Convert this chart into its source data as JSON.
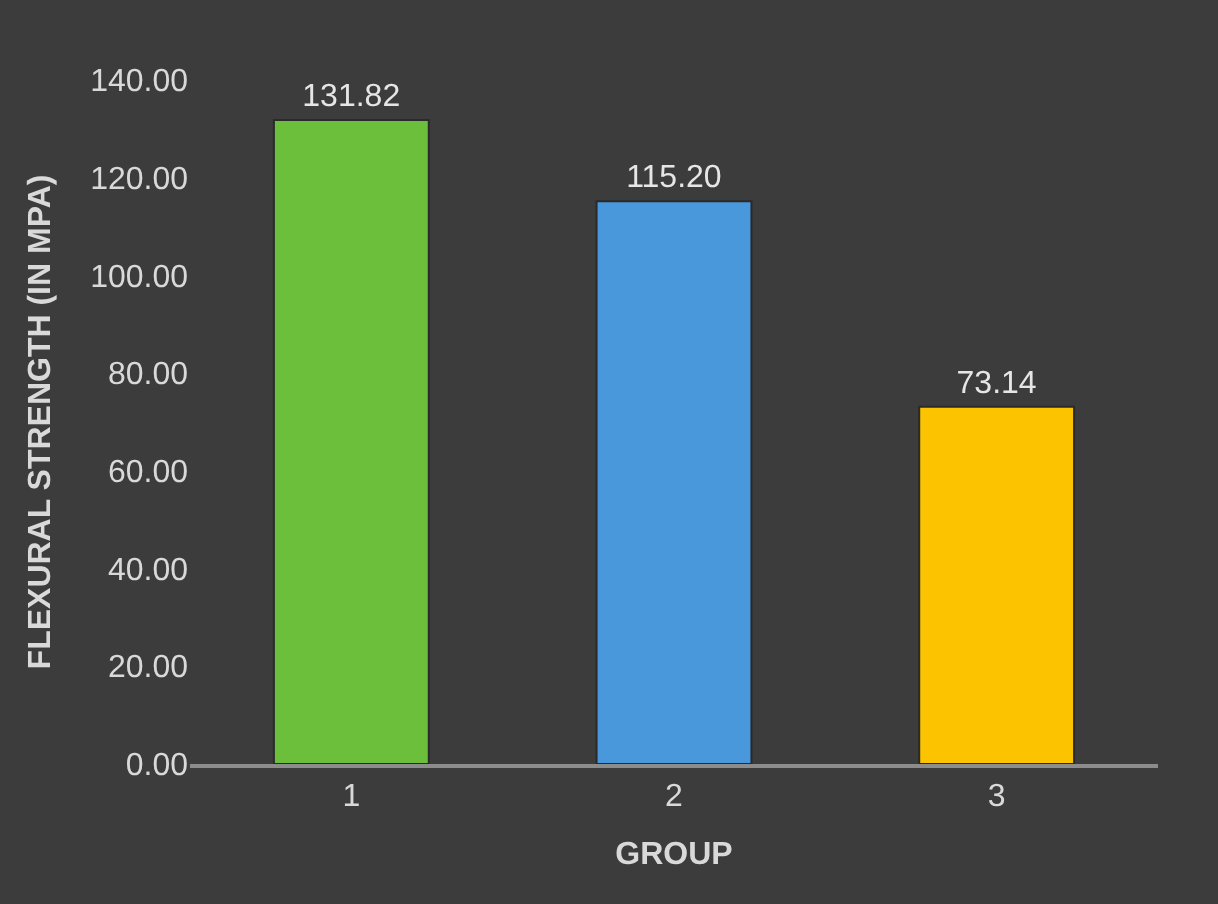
{
  "chart_data": {
    "type": "bar",
    "xlabel": "GROUP",
    "ylabel": "FLEXURAL STRENGTH (IN MPA)",
    "categories": [
      "1",
      "2",
      "3"
    ],
    "values": [
      131.82,
      115.2,
      73.14
    ],
    "colors": [
      "#6cbf3a",
      "#4a98dc",
      "#fcc400"
    ],
    "value_labels": [
      "131.82",
      "115.20",
      "73.14"
    ],
    "ylim": [
      0,
      140
    ],
    "yticks": [
      {
        "value": 0,
        "label": "0.00"
      },
      {
        "value": 20,
        "label": "20.00"
      },
      {
        "value": 40,
        "label": "40.00"
      },
      {
        "value": 60,
        "label": "60.00"
      },
      {
        "value": 80,
        "label": "80.00"
      },
      {
        "value": 100,
        "label": "100.00"
      },
      {
        "value": 120,
        "label": "120.00"
      },
      {
        "value": 140,
        "label": "140.00"
      }
    ],
    "grid": false,
    "legend": false
  }
}
